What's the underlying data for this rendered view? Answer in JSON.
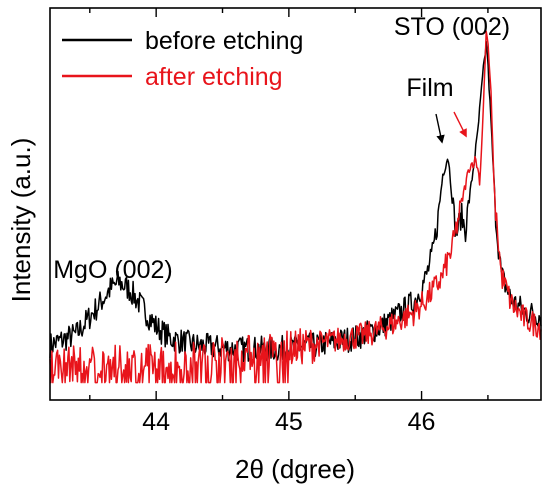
{
  "chart_data": {
    "type": "line",
    "title": "",
    "xlabel": "2θ (dgree)",
    "ylabel": "Intensity (a.u.)",
    "xlim": [
      43.2,
      46.9
    ],
    "ylim": [
      0,
      1.0
    ],
    "y_ticks_shown": false,
    "x_ticks": [
      44,
      45,
      46
    ],
    "x_tick_labels": [
      "44",
      "45",
      "46"
    ],
    "legend_position": "top-left",
    "series": [
      {
        "name": "before etching",
        "color": "#000000",
        "points": [
          [
            43.2,
            0.12
          ],
          [
            43.4,
            0.15
          ],
          [
            43.55,
            0.22
          ],
          [
            43.65,
            0.27
          ],
          [
            43.72,
            0.29
          ],
          [
            43.8,
            0.27
          ],
          [
            43.9,
            0.22
          ],
          [
            44.0,
            0.17
          ],
          [
            44.1,
            0.14
          ],
          [
            44.3,
            0.12
          ],
          [
            44.6,
            0.11
          ],
          [
            44.9,
            0.11
          ],
          [
            45.2,
            0.12
          ],
          [
            45.5,
            0.14
          ],
          [
            45.7,
            0.17
          ],
          [
            45.85,
            0.21
          ],
          [
            45.95,
            0.24
          ],
          [
            46.03,
            0.3
          ],
          [
            46.08,
            0.36
          ],
          [
            46.12,
            0.45
          ],
          [
            46.16,
            0.58
          ],
          [
            46.2,
            0.63
          ],
          [
            46.23,
            0.52
          ],
          [
            46.26,
            0.42
          ],
          [
            46.3,
            0.47
          ],
          [
            46.33,
            0.43
          ],
          [
            46.37,
            0.54
          ],
          [
            46.42,
            0.68
          ],
          [
            46.46,
            0.84
          ],
          [
            46.49,
            0.94
          ],
          [
            46.52,
            0.74
          ],
          [
            46.56,
            0.46
          ],
          [
            46.6,
            0.31
          ],
          [
            46.68,
            0.24
          ],
          [
            46.78,
            0.21
          ],
          [
            46.9,
            0.2
          ]
        ]
      },
      {
        "name": "after etching",
        "color": "#e8141b",
        "points": [
          [
            43.2,
            0.07
          ],
          [
            43.5,
            0.07
          ],
          [
            43.8,
            0.07
          ],
          [
            44.1,
            0.08
          ],
          [
            44.4,
            0.09
          ],
          [
            44.7,
            0.1
          ],
          [
            45.0,
            0.11
          ],
          [
            45.3,
            0.13
          ],
          [
            45.6,
            0.15
          ],
          [
            45.8,
            0.18
          ],
          [
            45.95,
            0.21
          ],
          [
            46.05,
            0.25
          ],
          [
            46.15,
            0.3
          ],
          [
            46.23,
            0.38
          ],
          [
            46.3,
            0.5
          ],
          [
            46.36,
            0.6
          ],
          [
            46.41,
            0.62
          ],
          [
            46.44,
            0.56
          ],
          [
            46.47,
            0.8
          ],
          [
            46.49,
            0.98
          ],
          [
            46.52,
            0.82
          ],
          [
            46.55,
            0.52
          ],
          [
            46.6,
            0.31
          ],
          [
            46.68,
            0.23
          ],
          [
            46.78,
            0.19
          ],
          [
            46.9,
            0.17
          ]
        ]
      }
    ],
    "annotations": [
      {
        "text": "MgO (002)",
        "x": 43.75,
        "y": 0.36
      },
      {
        "text": "STO (002)",
        "x": 46.45,
        "y": 1.0
      },
      {
        "text": "Film",
        "x": 46.28,
        "y": 0.78
      }
    ]
  }
}
